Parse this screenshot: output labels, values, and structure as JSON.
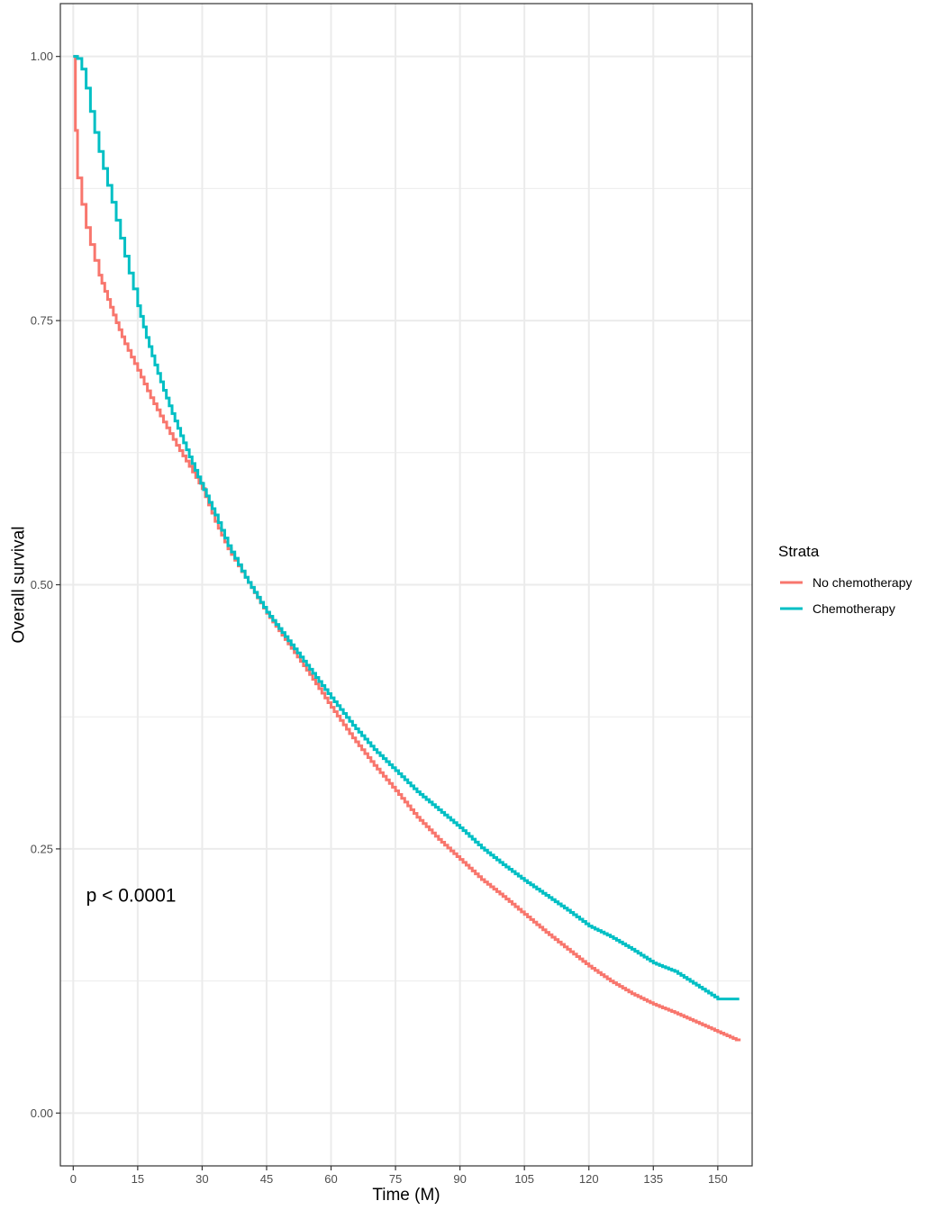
{
  "chart_data": {
    "type": "line",
    "title": "",
    "xlabel": "Time (M)",
    "ylabel": "Overall survival",
    "xlim": [
      -3,
      158
    ],
    "ylim": [
      -0.05,
      1.05
    ],
    "xticks": [
      0,
      15,
      30,
      45,
      60,
      75,
      90,
      105,
      120,
      135,
      150
    ],
    "xtick_labels": [
      "0",
      "15",
      "30",
      "45",
      "60",
      "75",
      "90",
      "105",
      "120",
      "135",
      "150"
    ],
    "yticks": [
      0,
      0.25,
      0.5,
      0.75,
      1
    ],
    "ytick_labels": [
      "0.00",
      "0.25",
      "0.50",
      "0.75",
      "1.00"
    ],
    "y_minor_gridlines": [
      0.125,
      0.375,
      0.625,
      0.875
    ],
    "grid": true,
    "step": true,
    "legend": {
      "title": "Strata",
      "position": "right"
    },
    "annotation": "p < 0.0001",
    "annotation_position": {
      "x": 3,
      "y": 0.2
    },
    "series": [
      {
        "name": "No chemotherapy",
        "color": "#F8766D",
        "x": [
          0,
          0.5,
          1,
          2,
          3,
          4,
          5,
          6,
          8,
          10,
          12,
          15,
          18,
          21,
          24,
          27,
          30,
          33,
          36,
          40,
          45,
          50,
          55,
          60,
          65,
          70,
          75,
          80,
          85,
          90,
          95,
          100,
          105,
          110,
          115,
          120,
          125,
          130,
          135,
          140,
          145,
          150,
          155
        ],
        "y": [
          1.0,
          0.93,
          0.885,
          0.86,
          0.838,
          0.822,
          0.807,
          0.793,
          0.77,
          0.748,
          0.728,
          0.703,
          0.677,
          0.654,
          0.632,
          0.612,
          0.591,
          0.56,
          0.534,
          0.507,
          0.473,
          0.444,
          0.415,
          0.384,
          0.355,
          0.329,
          0.305,
          0.28,
          0.259,
          0.24,
          0.221,
          0.205,
          0.188,
          0.171,
          0.155,
          0.139,
          0.125,
          0.113,
          0.103,
          0.095,
          0.086,
          0.077,
          0.068
        ]
      },
      {
        "name": "Chemotherapy",
        "color": "#00BFC4",
        "x": [
          0,
          1,
          2,
          3,
          4,
          5,
          6,
          7,
          8,
          9,
          10,
          11,
          12,
          13,
          14,
          15,
          17,
          19,
          21,
          23,
          25,
          27,
          29,
          31,
          33,
          36,
          40,
          45,
          50,
          55,
          60,
          65,
          70,
          75,
          80,
          85,
          90,
          95,
          100,
          105,
          110,
          115,
          120,
          125,
          130,
          135,
          140,
          145,
          150,
          155
        ],
        "y": [
          1.0,
          0.998,
          0.988,
          0.97,
          0.948,
          0.928,
          0.91,
          0.894,
          0.878,
          0.862,
          0.845,
          0.828,
          0.811,
          0.795,
          0.78,
          0.764,
          0.734,
          0.708,
          0.684,
          0.662,
          0.641,
          0.621,
          0.602,
          0.584,
          0.566,
          0.537,
          0.507,
          0.474,
          0.447,
          0.42,
          0.393,
          0.367,
          0.344,
          0.324,
          0.304,
          0.287,
          0.27,
          0.251,
          0.235,
          0.22,
          0.206,
          0.192,
          0.177,
          0.167,
          0.155,
          0.142,
          0.134,
          0.121,
          0.108,
          0.108
        ]
      }
    ]
  }
}
